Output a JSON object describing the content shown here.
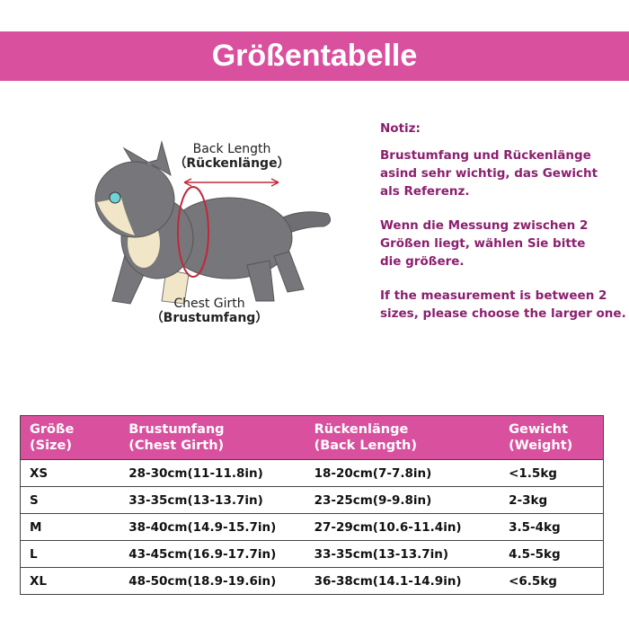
{
  "header": {
    "title": "Größentabelle"
  },
  "illustration": {
    "back_length": "Back Length",
    "back_length_de": "（Rückenlänge）",
    "chest_girth": "Chest Girth",
    "chest_girth_de": "（Brustumfang）"
  },
  "notes": {
    "heading": "Notiz:",
    "paragraphs": [
      [
        "Brustumfang und Rückenlänge",
        "asind sehr wichtig, das Gewicht",
        "als Referenz."
      ],
      [
        "Wenn die Messung zwischen 2",
        "Größen liegt, wählen Sie bitte",
        "die größere."
      ],
      [
        "If the measurement is between 2",
        "sizes, please choose the larger one."
      ]
    ]
  },
  "table": {
    "columns": [
      [
        "Größe",
        "(Size)"
      ],
      [
        "Brustumfang",
        "(Chest Girth)"
      ],
      [
        "Rückenlänge",
        "(Back Length)"
      ],
      [
        "Gewicht",
        "(Weight)"
      ]
    ],
    "rows": [
      [
        "XS",
        "28-30cm(11-11.8in)",
        "18-20cm(7-7.8in)",
        "<1.5kg"
      ],
      [
        "S",
        "33-35cm(13-13.7in)",
        "23-25cm(9-9.8in)",
        "2-3kg"
      ],
      [
        "M",
        "38-40cm(14.9-15.7in)",
        "27-29cm(10.6-11.4in)",
        "3.5-4kg"
      ],
      [
        "L",
        "43-45cm(16.9-17.7in)",
        "33-35cm(13-13.7in)",
        "4.5-5kg"
      ],
      [
        "XL",
        "48-50cm(18.9-19.6in)",
        "36-38cm(14.1-14.9in)",
        "<6.5kg"
      ]
    ]
  }
}
